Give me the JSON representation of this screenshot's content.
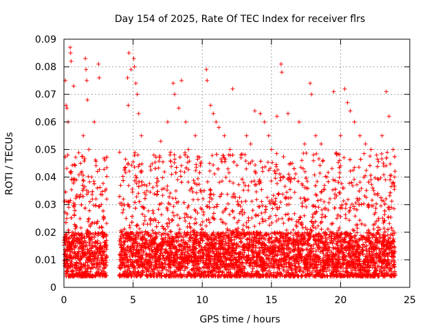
{
  "chart_data": {
    "type": "scatter",
    "title": "Day 154 of 2025, Rate Of TEC Index for receiver flrs",
    "xlabel": "GPS time / hours",
    "ylabel": "ROTI / TECUs",
    "xlim": [
      0,
      25
    ],
    "ylim": [
      0,
      0.09
    ],
    "xticks": [
      0,
      5,
      10,
      15,
      20,
      25
    ],
    "xtick_labels": [
      "0",
      "5",
      "10",
      "15",
      "20",
      "25"
    ],
    "yticks": [
      0,
      0.01,
      0.02,
      0.03,
      0.04,
      0.05,
      0.06,
      0.07,
      0.08,
      0.09
    ],
    "ytick_labels": [
      "0",
      "0.01",
      "0.02",
      "0.03",
      "0.04",
      "0.05",
      "0.06",
      "0.07",
      "0.08",
      "0.09"
    ],
    "grid": true,
    "marker": "+",
    "color": "#ff0000",
    "data_gap_hours": [
      3.1,
      4.0
    ],
    "series": [
      {
        "name": "ROTI",
        "points": [
          [
            0.1,
            0.075
          ],
          [
            0.15,
            0.066
          ],
          [
            0.22,
            0.065
          ],
          [
            0.3,
            0.06
          ],
          [
            0.45,
            0.087
          ],
          [
            0.48,
            0.085
          ],
          [
            0.52,
            0.082
          ],
          [
            0.7,
            0.073
          ],
          [
            0.05,
            0.012
          ],
          [
            0.12,
            0.018
          ],
          [
            0.2,
            0.025
          ],
          [
            0.35,
            0.015
          ],
          [
            0.6,
            0.02
          ],
          [
            0.8,
            0.03
          ],
          [
            1.0,
            0.016
          ],
          [
            1.2,
            0.045
          ],
          [
            1.4,
            0.055
          ],
          [
            1.55,
            0.083
          ],
          [
            1.6,
            0.079
          ],
          [
            1.65,
            0.075
          ],
          [
            1.7,
            0.068
          ],
          [
            1.8,
            0.05
          ],
          [
            2.0,
            0.04
          ],
          [
            2.2,
            0.06
          ],
          [
            2.5,
            0.081
          ],
          [
            2.55,
            0.076
          ],
          [
            2.7,
            0.03
          ],
          [
            2.9,
            0.012
          ],
          [
            3.0,
            0.008
          ],
          [
            4.1,
            0.037
          ],
          [
            4.3,
            0.032
          ],
          [
            4.5,
            0.025
          ],
          [
            4.6,
            0.076
          ],
          [
            4.65,
            0.066
          ],
          [
            4.7,
            0.085
          ],
          [
            4.85,
            0.079
          ],
          [
            5.05,
            0.083
          ],
          [
            5.1,
            0.08
          ],
          [
            5.2,
            0.074
          ],
          [
            5.3,
            0.07
          ],
          [
            5.4,
            0.063
          ],
          [
            5.6,
            0.055
          ],
          [
            6.0,
            0.035
          ],
          [
            6.5,
            0.048
          ],
          [
            7.0,
            0.053
          ],
          [
            7.5,
            0.06
          ],
          [
            7.9,
            0.074
          ],
          [
            8.0,
            0.07
          ],
          [
            8.3,
            0.065
          ],
          [
            8.5,
            0.075
          ],
          [
            8.8,
            0.06
          ],
          [
            9.0,
            0.05
          ],
          [
            9.5,
            0.055
          ],
          [
            9.9,
            0.045
          ],
          [
            10.3,
            0.079
          ],
          [
            10.35,
            0.075
          ],
          [
            10.6,
            0.066
          ],
          [
            10.8,
            0.063
          ],
          [
            11.0,
            0.06
          ],
          [
            11.2,
            0.058
          ],
          [
            11.6,
            0.055
          ],
          [
            12.0,
            0.05
          ],
          [
            12.2,
            0.072
          ],
          [
            12.8,
            0.048
          ],
          [
            13.2,
            0.055
          ],
          [
            13.5,
            0.052
          ],
          [
            13.8,
            0.064
          ],
          [
            14.2,
            0.063
          ],
          [
            14.5,
            0.06
          ],
          [
            14.8,
            0.055
          ],
          [
            15.0,
            0.05
          ],
          [
            15.4,
            0.062
          ],
          [
            15.7,
            0.081
          ],
          [
            15.75,
            0.078
          ],
          [
            16.2,
            0.063
          ],
          [
            16.5,
            0.045
          ],
          [
            17.0,
            0.06
          ],
          [
            17.4,
            0.052
          ],
          [
            17.8,
            0.074
          ],
          [
            17.9,
            0.07
          ],
          [
            18.2,
            0.055
          ],
          [
            18.6,
            0.052
          ],
          [
            19.0,
            0.04
          ],
          [
            19.5,
            0.071
          ],
          [
            20.0,
            0.055
          ],
          [
            20.3,
            0.072
          ],
          [
            20.5,
            0.067
          ],
          [
            20.7,
            0.064
          ],
          [
            21.0,
            0.06
          ],
          [
            21.4,
            0.055
          ],
          [
            21.8,
            0.052
          ],
          [
            22.2,
            0.05
          ],
          [
            22.6,
            0.048
          ],
          [
            23.0,
            0.055
          ],
          [
            23.3,
            0.071
          ],
          [
            23.5,
            0.062
          ],
          [
            23.8,
            0.05
          ],
          [
            23.9,
            0.04
          ],
          [
            23.95,
            0.005
          ]
        ],
        "density_band": {
          "description": "Dense continuous scatter; bulk of points between 0.005 and 0.025 TECU across all hours except the 3.1–4.0 h data gap",
          "typical_min": 0.004,
          "typical_max": 0.045
        }
      }
    ]
  }
}
